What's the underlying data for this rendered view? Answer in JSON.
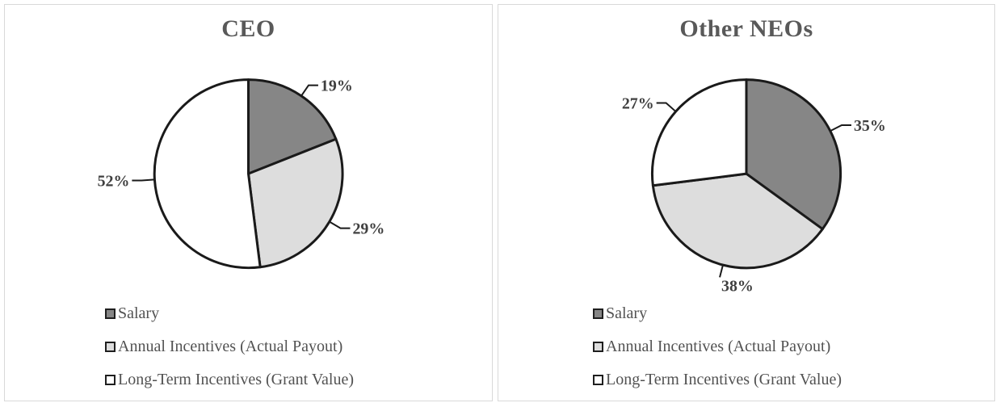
{
  "chart_data": [
    {
      "type": "pie",
      "title": "CEO",
      "labels": [
        "Salary",
        "Annual Incentives (Actual Payout)",
        "Long-Term Incentives (Grant Value)"
      ],
      "values": [
        19,
        29,
        52
      ],
      "value_labels": [
        "19%",
        "29%",
        "52%"
      ],
      "start_angle_deg": 0,
      "direction": "clockwise",
      "legend_position": "bottom-left"
    },
    {
      "type": "pie",
      "title": "Other NEOs",
      "labels": [
        "Salary",
        "Annual Incentives (Actual Payout)",
        "Long-Term Incentives (Grant Value)"
      ],
      "values": [
        35,
        38,
        27
      ],
      "value_labels": [
        "35%",
        "38%",
        "27%"
      ],
      "start_angle_deg": 0,
      "direction": "clockwise",
      "legend_position": "bottom-left"
    }
  ],
  "colors": {
    "slice_fills": [
      "#868686",
      "#dddddd",
      "#ffffff"
    ],
    "slice_outline": "#1a1a1a",
    "leader_line": "#1a1a1a",
    "value_label_text": "#3f3f3f",
    "title_text": "#595959",
    "legend_text": "#525252",
    "panel_border": "#d9d9d9",
    "background": "#ffffff"
  }
}
